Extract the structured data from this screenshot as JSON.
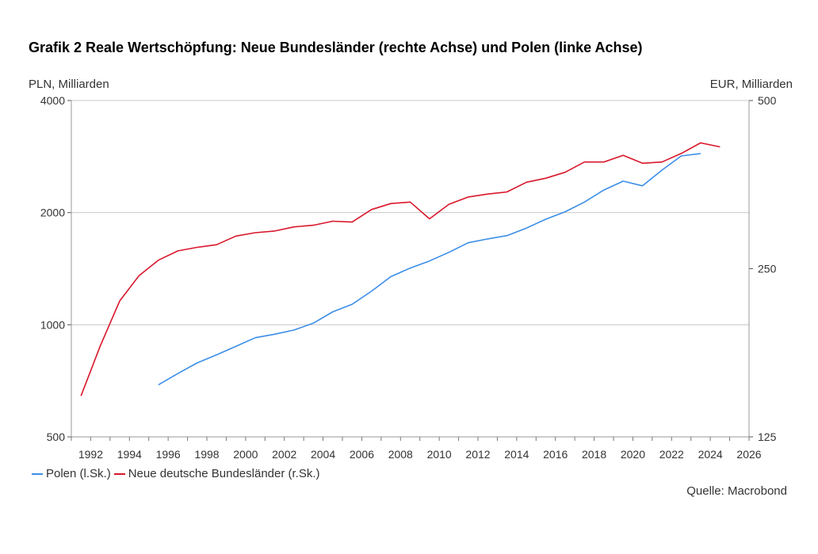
{
  "chart_data": {
    "type": "line",
    "title": "Grafik 2 Reale Wertschöpfung: Neue Bundesländer (rechte Achse) und Polen (linke Achse)",
    "y_left_label": "PLN, Milliarden",
    "y_right_label": "EUR, Milliarden",
    "y_left_scale": "log",
    "y_right_scale": "log",
    "y_left_range": [
      500,
      4000
    ],
    "y_right_range": [
      125,
      500
    ],
    "y_left_ticks": [
      500,
      1000,
      2000,
      4000
    ],
    "y_right_ticks": [
      125,
      250,
      500
    ],
    "x_range": [
      1991,
      2026
    ],
    "x_ticks": [
      1992,
      1994,
      1996,
      1998,
      2000,
      2002,
      2004,
      2006,
      2008,
      2010,
      2012,
      2014,
      2016,
      2018,
      2020,
      2022,
      2024,
      2026
    ],
    "grid": "horizontal",
    "legend_position": "bottom-left",
    "source": "Quelle: Macrobond",
    "series": [
      {
        "name": "Polen (l.Sk.)",
        "axis": "left",
        "color": "#3c8ee8",
        "x": [
          1995.5,
          1996.5,
          1997.5,
          1998.5,
          1999.5,
          2000.5,
          2001.5,
          2002.5,
          2003.5,
          2004.5,
          2005.5,
          2006.5,
          2007.5,
          2008.5,
          2009.5,
          2010.5,
          2011.5,
          2012.5,
          2013.5,
          2014.5,
          2015.5,
          2016.5,
          2017.5,
          2018.5,
          2019.5,
          2020.5,
          2021.5,
          2022.5,
          2023.5
        ],
        "values": [
          690,
          740,
          790,
          830,
          875,
          923,
          943,
          968,
          1010,
          1083,
          1135,
          1230,
          1347,
          1420,
          1484,
          1565,
          1660,
          1700,
          1735,
          1818,
          1920,
          2010,
          2135,
          2300,
          2430,
          2360,
          2600,
          2840,
          2880
        ]
      },
      {
        "name": "Neue deutsche Bundesländer (r.Sk.)",
        "axis": "right",
        "color": "#d9172b",
        "x": [
          1991.5,
          1992.5,
          1993.5,
          1994.5,
          1995.5,
          1996.5,
          1997.5,
          1998.5,
          1999.5,
          2000.5,
          2001.5,
          2002.5,
          2003.5,
          2004.5,
          2005.5,
          2006.5,
          2007.5,
          2008.5,
          2009.5,
          2010.5,
          2011.5,
          2012.5,
          2013.5,
          2014.5,
          2015.5,
          2016.5,
          2017.5,
          2018.5,
          2019.5,
          2020.5,
          2021.5,
          2022.5,
          2023.5,
          2024.5
        ],
        "values": [
          148,
          182,
          219,
          243,
          259,
          269,
          273,
          276,
          286,
          290,
          292,
          297,
          299,
          304,
          303,
          319,
          327,
          329,
          307,
          326,
          336,
          340,
          343,
          357,
          363,
          372,
          388,
          388,
          399,
          386,
          388,
          402,
          420,
          413
        ]
      }
    ]
  }
}
